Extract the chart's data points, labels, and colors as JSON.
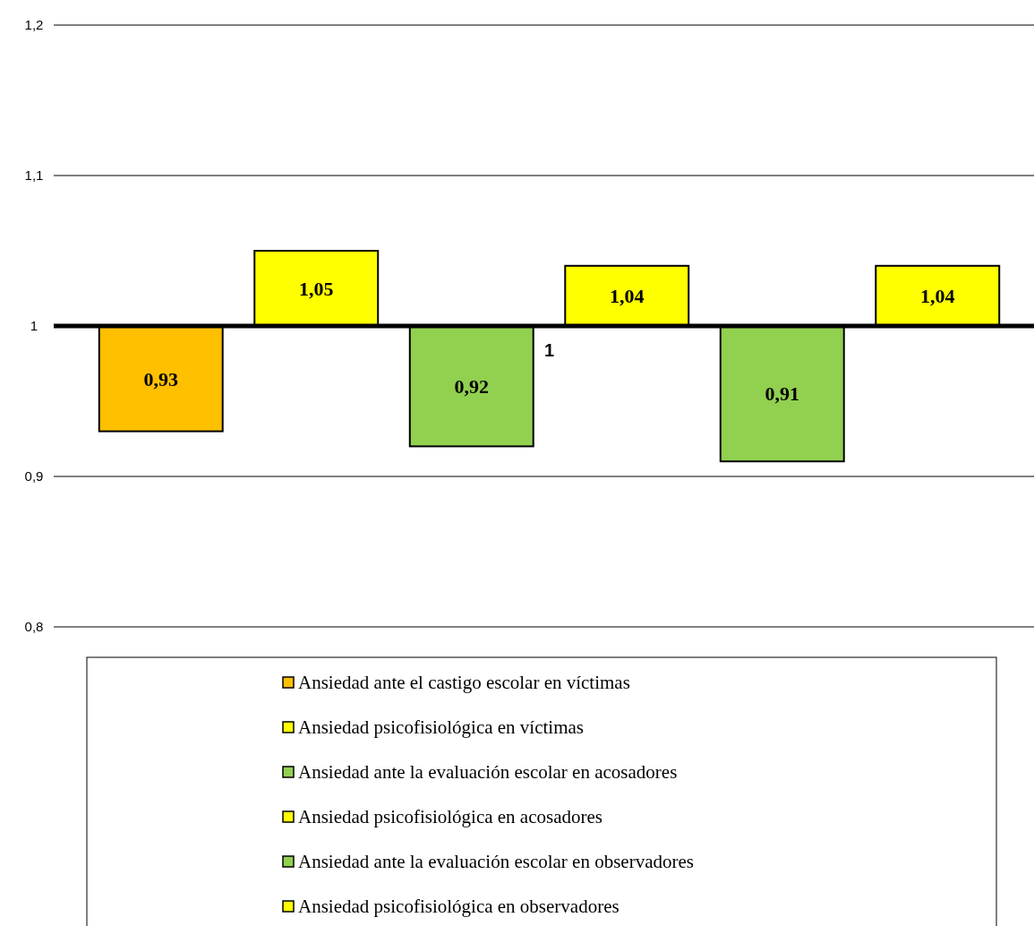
{
  "chart_data": {
    "type": "bar",
    "categories": [
      "1"
    ],
    "series": [
      {
        "name": "Ansiedad ante el castigo escolar en víctimas",
        "color": "#ffc000",
        "base": [
          1
        ],
        "values": [
          -0.07
        ],
        "value_labels": [
          "0,93"
        ]
      },
      {
        "name": "Ansiedad psicofisiológica en víctimas",
        "color": "#ffff00",
        "base": [
          1
        ],
        "values": [
          0.05
        ],
        "value_labels": [
          "1,05"
        ]
      },
      {
        "name": "Ansiedad ante la evaluación escolar en acosadores",
        "color": "#92d050",
        "base": [
          1
        ],
        "values": [
          -0.08
        ],
        "value_labels": [
          "0,92"
        ]
      },
      {
        "name": "Ansiedad psicofisiológica en acosadores",
        "color": "#ffff00",
        "base": [
          1
        ],
        "values": [
          0.04
        ],
        "value_labels": [
          "1,04"
        ]
      },
      {
        "name": "Ansiedad ante la evaluación escolar en observadores",
        "color": "#92d050",
        "base": [
          1
        ],
        "values": [
          -0.09
        ],
        "value_labels": [
          "0,91"
        ]
      },
      {
        "name": "Ansiedad psicofisiológica en observadores",
        "color": "#ffff00",
        "base": [
          1
        ],
        "values": [
          0.04
        ],
        "value_labels": [
          "1,04"
        ]
      }
    ],
    "ylim": [
      0.8,
      1.2
    ],
    "yticks": [
      {
        "value": 0.8,
        "label": "0,8"
      },
      {
        "value": 0.9,
        "label": "0,9"
      },
      1,
      {
        "value": 1.1,
        "label": "1,1"
      },
      {
        "value": 1.2,
        "label": "1,2"
      }
    ],
    "ref_lines": [
      {
        "axis": "y",
        "value": 1
      }
    ],
    "grid": "y",
    "legend": "bottom"
  }
}
